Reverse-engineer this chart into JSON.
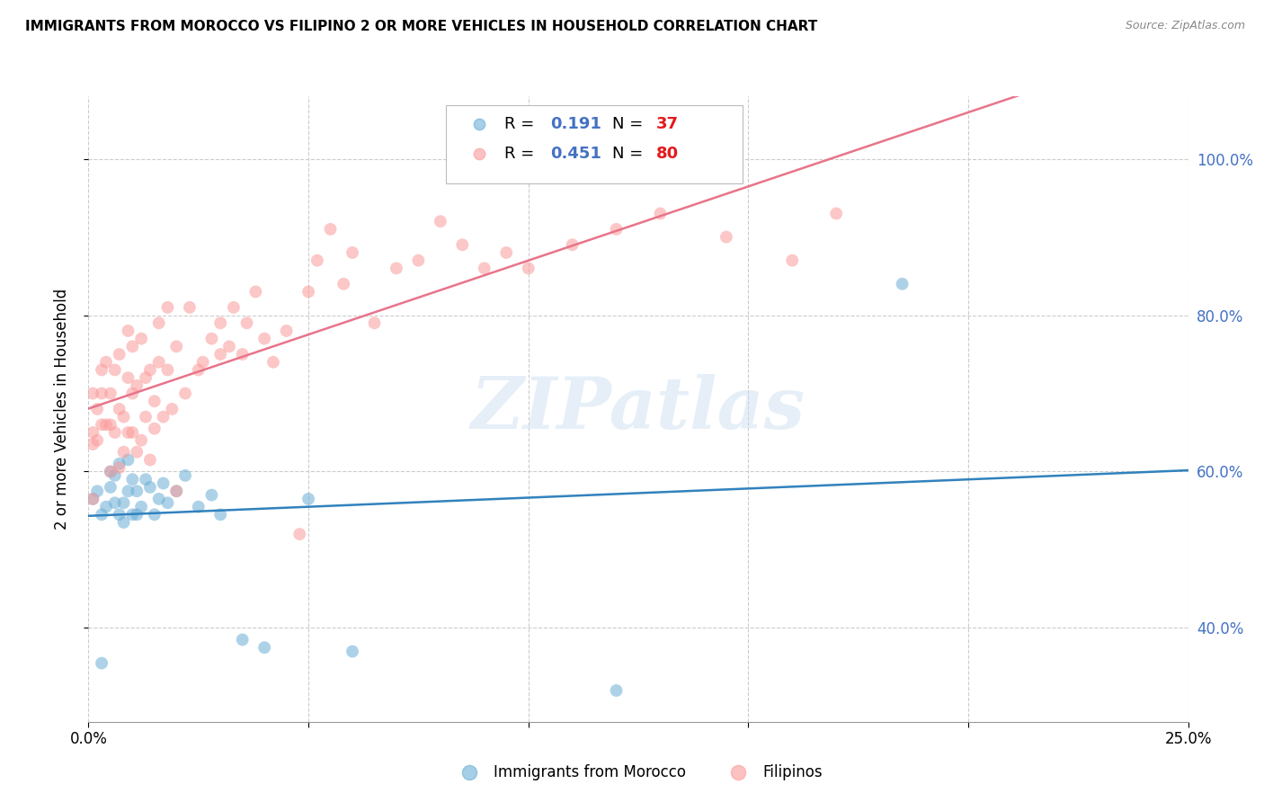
{
  "title": "IMMIGRANTS FROM MOROCCO VS FILIPINO 2 OR MORE VEHICLES IN HOUSEHOLD CORRELATION CHART",
  "source": "Source: ZipAtlas.com",
  "ylabel": "2 or more Vehicles in Household",
  "xlim": [
    0.0,
    0.25
  ],
  "ylim": [
    0.28,
    1.08
  ],
  "y_ticks": [
    0.4,
    0.6,
    0.8,
    1.0
  ],
  "y_tick_labels": [
    "40.0%",
    "60.0%",
    "80.0%",
    "100.0%"
  ],
  "legend_v1": "0.191",
  "legend_nv1": "37",
  "legend_v2": "0.451",
  "legend_nv2": "80",
  "color_morocco": "#6baed6",
  "color_filipino": "#fb9a99",
  "color_trend_morocco": "#3182bd",
  "color_trend_filipino": "#e8748a",
  "watermark": "ZIPatlas",
  "morocco_x": [
    0.001,
    0.002,
    0.003,
    0.004,
    0.005,
    0.005,
    0.006,
    0.006,
    0.007,
    0.007,
    0.008,
    0.008,
    0.009,
    0.009,
    0.01,
    0.01,
    0.011,
    0.011,
    0.012,
    0.013,
    0.014,
    0.015,
    0.016,
    0.017,
    0.018,
    0.02,
    0.022,
    0.025,
    0.028,
    0.03,
    0.035,
    0.04,
    0.05,
    0.06,
    0.12,
    0.185,
    0.003
  ],
  "morocco_y": [
    0.565,
    0.575,
    0.545,
    0.555,
    0.6,
    0.58,
    0.56,
    0.595,
    0.545,
    0.61,
    0.535,
    0.56,
    0.575,
    0.615,
    0.545,
    0.59,
    0.545,
    0.575,
    0.555,
    0.59,
    0.58,
    0.545,
    0.565,
    0.585,
    0.56,
    0.575,
    0.595,
    0.555,
    0.57,
    0.545,
    0.385,
    0.375,
    0.565,
    0.37,
    0.32,
    0.84,
    0.355
  ],
  "filipino_x": [
    0.001,
    0.001,
    0.002,
    0.002,
    0.003,
    0.003,
    0.003,
    0.004,
    0.004,
    0.005,
    0.005,
    0.005,
    0.006,
    0.006,
    0.007,
    0.007,
    0.007,
    0.008,
    0.008,
    0.009,
    0.009,
    0.009,
    0.01,
    0.01,
    0.01,
    0.011,
    0.011,
    0.012,
    0.012,
    0.013,
    0.013,
    0.014,
    0.014,
    0.015,
    0.015,
    0.016,
    0.016,
    0.017,
    0.018,
    0.018,
    0.019,
    0.02,
    0.02,
    0.022,
    0.023,
    0.025,
    0.026,
    0.028,
    0.03,
    0.03,
    0.032,
    0.033,
    0.035,
    0.036,
    0.038,
    0.04,
    0.042,
    0.045,
    0.048,
    0.05,
    0.052,
    0.055,
    0.058,
    0.06,
    0.065,
    0.07,
    0.075,
    0.08,
    0.085,
    0.09,
    0.095,
    0.1,
    0.11,
    0.12,
    0.13,
    0.145,
    0.16,
    0.17,
    0.001,
    0.001
  ],
  "filipino_y": [
    0.65,
    0.7,
    0.64,
    0.68,
    0.66,
    0.7,
    0.73,
    0.66,
    0.74,
    0.6,
    0.66,
    0.7,
    0.65,
    0.73,
    0.605,
    0.68,
    0.75,
    0.625,
    0.67,
    0.65,
    0.72,
    0.78,
    0.65,
    0.7,
    0.76,
    0.625,
    0.71,
    0.64,
    0.77,
    0.67,
    0.72,
    0.615,
    0.73,
    0.655,
    0.69,
    0.74,
    0.79,
    0.67,
    0.73,
    0.81,
    0.68,
    0.575,
    0.76,
    0.7,
    0.81,
    0.73,
    0.74,
    0.77,
    0.75,
    0.79,
    0.76,
    0.81,
    0.75,
    0.79,
    0.83,
    0.77,
    0.74,
    0.78,
    0.52,
    0.83,
    0.87,
    0.91,
    0.84,
    0.88,
    0.79,
    0.86,
    0.87,
    0.92,
    0.89,
    0.86,
    0.88,
    0.86,
    0.89,
    0.91,
    0.93,
    0.9,
    0.87,
    0.93,
    0.565,
    0.635
  ]
}
